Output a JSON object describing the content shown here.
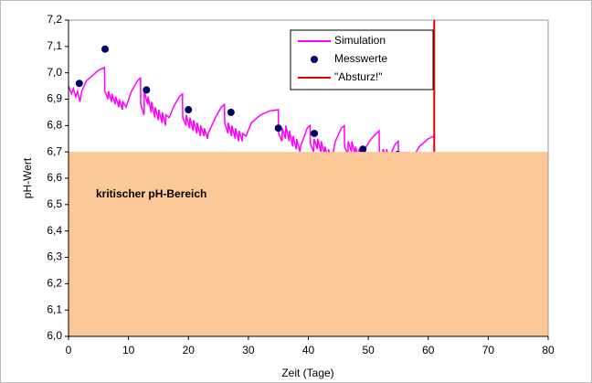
{
  "chart_data": {
    "type": "line",
    "y_label": "pH-Wert",
    "x_label": "Zeit (Tage)",
    "xlim": [
      0,
      80
    ],
    "xticks": [
      0,
      10,
      20,
      30,
      40,
      50,
      60,
      70,
      80
    ],
    "ylim": [
      6.0,
      7.2
    ],
    "yticks": [
      {
        "value": 6.0,
        "label": "6,0"
      },
      {
        "value": 6.1,
        "label": "6,1"
      },
      {
        "value": 6.2,
        "label": "6,2"
      },
      {
        "value": 6.3,
        "label": "6,3"
      },
      {
        "value": 6.4,
        "label": "6,4"
      },
      {
        "value": 6.5,
        "label": "6,5"
      },
      {
        "value": 6.6,
        "label": "6,6"
      },
      {
        "value": 6.7,
        "label": "6,7"
      },
      {
        "value": 6.8,
        "label": "6,8"
      },
      {
        "value": 6.9,
        "label": "6,9"
      },
      {
        "value": 7.0,
        "label": "7,0"
      },
      {
        "value": 7.1,
        "label": "7,1"
      },
      {
        "value": 7.2,
        "label": "7,2"
      }
    ],
    "grid": false,
    "legend": "top-right",
    "shaded_range": {
      "label": "kritischer pH-Bereich",
      "ylim": [
        6.0,
        6.7
      ],
      "color": "#fcc898",
      "label_color": "#ff0000"
    },
    "series": [
      {
        "name": "Simulation",
        "kind": "line",
        "color": "#ff00ff",
        "x": [
          0,
          0.5,
          0.8,
          1.2,
          1.5,
          1.9,
          2.2,
          3,
          4,
          5,
          6,
          6.05,
          6.6,
          6.65,
          7.2,
          7.25,
          7.8,
          7.85,
          8.4,
          8.45,
          9.0,
          9.05,
          9.6,
          10.5,
          11.5,
          12,
          12.05,
          12.6,
          12.65,
          13.2,
          13.25,
          13.8,
          13.85,
          14.4,
          14.45,
          15,
          15.05,
          15.6,
          15.65,
          16.2,
          16.25,
          16.8,
          17.5,
          18.5,
          19,
          19.05,
          19.6,
          19.65,
          20.2,
          20.25,
          20.8,
          20.85,
          21.4,
          21.45,
          22,
          22.05,
          22.6,
          22.65,
          23.2,
          23.3,
          24.5,
          25.5,
          26,
          26.05,
          26.6,
          26.65,
          27.2,
          27.25,
          27.8,
          27.85,
          28.4,
          28.45,
          29,
          29.05,
          29.6,
          30.5,
          32,
          33.5,
          35,
          35.05,
          35.6,
          35.65,
          36.2,
          36.25,
          36.8,
          36.85,
          37.4,
          37.45,
          38,
          38.05,
          38.6,
          38.7,
          39.8,
          40.3,
          40.35,
          40.9,
          40.95,
          41.5,
          41.55,
          42.1,
          42.15,
          42.7,
          42.75,
          43.3,
          43.35,
          43.9,
          44.5,
          45.5,
          46,
          46.05,
          46.6,
          46.65,
          47.2,
          47.25,
          47.8,
          47.85,
          48.4,
          48.45,
          49,
          49.1,
          50.5,
          51.8,
          51.85,
          52.4,
          52.45,
          53,
          53.05,
          53.6,
          53.7,
          54.5,
          55,
          55.05,
          55.6,
          55.65,
          56.2,
          56.25,
          56.8,
          56.85,
          57.4,
          57.5,
          58.5,
          59.5,
          60,
          61
        ],
        "values": [
          6.95,
          6.92,
          6.94,
          6.91,
          6.93,
          6.89,
          6.93,
          6.97,
          6.99,
          7.01,
          7.02,
          6.93,
          6.9,
          6.93,
          6.89,
          6.92,
          6.88,
          6.91,
          6.87,
          6.9,
          6.86,
          6.89,
          6.87,
          6.93,
          6.97,
          6.98,
          6.88,
          6.84,
          6.93,
          6.88,
          6.91,
          6.85,
          6.89,
          6.83,
          6.87,
          6.82,
          6.86,
          6.81,
          6.85,
          6.8,
          6.84,
          6.83,
          6.87,
          6.91,
          6.92,
          6.83,
          6.8,
          6.84,
          6.79,
          6.83,
          6.78,
          6.82,
          6.77,
          6.81,
          6.76,
          6.8,
          6.76,
          6.79,
          6.75,
          6.77,
          6.83,
          6.87,
          6.88,
          6.81,
          6.77,
          6.81,
          6.76,
          6.8,
          6.75,
          6.79,
          6.74,
          6.78,
          6.74,
          6.77,
          6.76,
          6.81,
          6.84,
          6.855,
          6.86,
          6.77,
          6.74,
          6.79,
          6.75,
          6.8,
          6.74,
          6.78,
          6.72,
          6.76,
          6.71,
          6.75,
          6.7,
          6.72,
          6.79,
          6.8,
          6.73,
          6.7,
          6.75,
          6.71,
          6.75,
          6.7,
          6.74,
          6.69,
          6.72,
          6.68,
          6.71,
          6.67,
          6.74,
          6.79,
          6.8,
          6.72,
          6.69,
          6.74,
          6.7,
          6.74,
          6.69,
          6.72,
          6.68,
          6.71,
          6.67,
          6.7,
          6.75,
          6.78,
          6.7,
          6.67,
          6.71,
          6.68,
          6.71,
          6.67,
          6.69,
          6.73,
          6.74,
          6.68,
          6.66,
          6.7,
          6.67,
          6.7,
          6.66,
          6.69,
          6.66,
          6.68,
          6.72,
          6.74,
          6.75,
          6.76
        ]
      },
      {
        "name": "Messwerte",
        "kind": "points",
        "color": "#000066",
        "x": [
          1.8,
          6.1,
          13,
          20,
          27.1,
          35,
          41,
          49.1,
          54.9
        ],
        "values": [
          6.96,
          7.09,
          6.935,
          6.86,
          6.85,
          6.79,
          6.77,
          6.71,
          6.69
        ]
      },
      {
        "name": "\"Absturz!\"",
        "kind": "line",
        "color": "#e00000",
        "x": [
          61,
          61
        ],
        "values": [
          6.0,
          7.2
        ]
      }
    ]
  }
}
